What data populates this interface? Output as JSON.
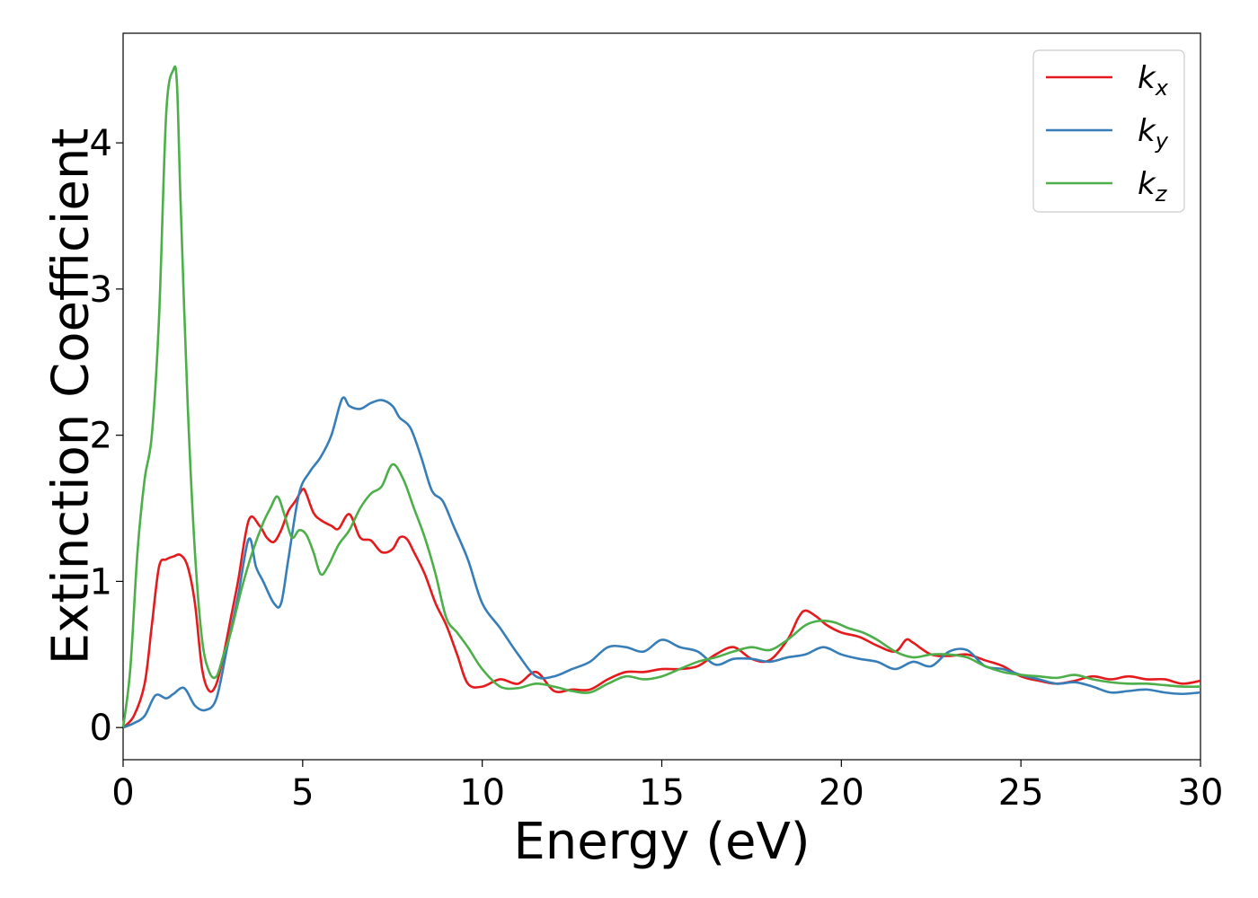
{
  "chart_data": {
    "type": "line",
    "title": "",
    "xlabel": "Energy (eV)",
    "ylabel": "Extinction Coefficient",
    "xlim": [
      0,
      30
    ],
    "ylim": [
      -0.22,
      4.75
    ],
    "xticks": [
      0,
      5,
      10,
      15,
      20,
      25,
      30
    ],
    "yticks": [
      0,
      1,
      2,
      3,
      4
    ],
    "grid": false,
    "legend_position": "top-right",
    "series": [
      {
        "name": "k",
        "subscript": "x",
        "color": "#e41a1c",
        "x": [
          0,
          0.3,
          0.6,
          0.8,
          1.0,
          1.2,
          1.4,
          1.6,
          1.8,
          2.0,
          2.2,
          2.4,
          2.6,
          2.8,
          3.0,
          3.2,
          3.5,
          3.8,
          4.0,
          4.2,
          4.4,
          4.6,
          4.8,
          5.0,
          5.1,
          5.3,
          5.5,
          5.8,
          6.0,
          6.3,
          6.6,
          6.9,
          7.2,
          7.5,
          7.7,
          7.9,
          8.1,
          8.4,
          8.7,
          9.0,
          9.3,
          9.6,
          10.0,
          10.5,
          11.0,
          11.5,
          12.0,
          12.5,
          13.0,
          13.5,
          14.0,
          14.5,
          15.0,
          15.5,
          16.0,
          16.5,
          17.0,
          17.5,
          18.0,
          18.5,
          18.8,
          19.0,
          19.3,
          19.6,
          20.0,
          20.5,
          21.0,
          21.5,
          21.8,
          22.0,
          22.5,
          23.0,
          23.5,
          24.0,
          24.5,
          25.0,
          25.5,
          26.0,
          26.5,
          27.0,
          27.5,
          28.0,
          28.5,
          29.0,
          29.5,
          30.0
        ],
        "y": [
          0.0,
          0.08,
          0.3,
          0.7,
          1.1,
          1.15,
          1.17,
          1.18,
          1.1,
          0.85,
          0.4,
          0.25,
          0.3,
          0.5,
          0.75,
          1.0,
          1.42,
          1.38,
          1.3,
          1.27,
          1.35,
          1.48,
          1.55,
          1.63,
          1.6,
          1.47,
          1.42,
          1.38,
          1.36,
          1.46,
          1.3,
          1.28,
          1.2,
          1.22,
          1.3,
          1.29,
          1.2,
          1.05,
          0.85,
          0.7,
          0.5,
          0.3,
          0.28,
          0.33,
          0.3,
          0.38,
          0.25,
          0.26,
          0.26,
          0.33,
          0.38,
          0.38,
          0.4,
          0.4,
          0.42,
          0.5,
          0.55,
          0.47,
          0.46,
          0.6,
          0.75,
          0.8,
          0.76,
          0.7,
          0.65,
          0.62,
          0.56,
          0.52,
          0.6,
          0.58,
          0.5,
          0.49,
          0.5,
          0.46,
          0.42,
          0.35,
          0.32,
          0.3,
          0.32,
          0.35,
          0.33,
          0.35,
          0.33,
          0.33,
          0.3,
          0.32
        ]
      },
      {
        "name": "k",
        "subscript": "y",
        "color": "#377eb8",
        "x": [
          0,
          0.3,
          0.6,
          0.9,
          1.2,
          1.4,
          1.7,
          2.0,
          2.3,
          2.6,
          2.9,
          3.2,
          3.5,
          3.7,
          3.9,
          4.2,
          4.4,
          4.6,
          4.9,
          5.2,
          5.5,
          5.8,
          6.1,
          6.3,
          6.6,
          6.9,
          7.2,
          7.5,
          7.7,
          8.0,
          8.3,
          8.6,
          8.9,
          9.2,
          9.6,
          10.0,
          10.5,
          11.0,
          11.5,
          12.0,
          12.5,
          13.0,
          13.5,
          14.0,
          14.5,
          15.0,
          15.5,
          16.0,
          16.5,
          17.0,
          17.5,
          18.0,
          18.5,
          19.0,
          19.5,
          20.0,
          20.5,
          21.0,
          21.5,
          22.0,
          22.5,
          23.0,
          23.5,
          24.0,
          24.5,
          25.0,
          25.5,
          26.0,
          26.5,
          27.0,
          27.5,
          28.0,
          28.5,
          29.0,
          29.5,
          30.0
        ],
        "y": [
          0.0,
          0.03,
          0.08,
          0.22,
          0.2,
          0.23,
          0.27,
          0.15,
          0.12,
          0.2,
          0.55,
          0.9,
          1.29,
          1.1,
          1.0,
          0.85,
          0.85,
          1.15,
          1.6,
          1.75,
          1.85,
          2.0,
          2.25,
          2.2,
          2.18,
          2.22,
          2.24,
          2.2,
          2.12,
          2.05,
          1.85,
          1.62,
          1.55,
          1.38,
          1.15,
          0.85,
          0.68,
          0.5,
          0.35,
          0.35,
          0.4,
          0.45,
          0.55,
          0.55,
          0.52,
          0.6,
          0.55,
          0.52,
          0.43,
          0.47,
          0.47,
          0.45,
          0.48,
          0.5,
          0.55,
          0.5,
          0.47,
          0.45,
          0.4,
          0.45,
          0.42,
          0.52,
          0.53,
          0.42,
          0.4,
          0.36,
          0.33,
          0.3,
          0.31,
          0.28,
          0.24,
          0.25,
          0.26,
          0.24,
          0.23,
          0.24
        ]
      },
      {
        "name": "k",
        "subscript": "z",
        "color": "#4daf4a",
        "x": [
          0,
          0.2,
          0.4,
          0.6,
          0.8,
          1.0,
          1.2,
          1.4,
          1.5,
          1.6,
          1.8,
          2.0,
          2.2,
          2.4,
          2.6,
          2.8,
          3.0,
          3.3,
          3.6,
          3.9,
          4.1,
          4.3,
          4.5,
          4.7,
          4.9,
          5.1,
          5.3,
          5.5,
          5.7,
          6.0,
          6.3,
          6.6,
          6.9,
          7.2,
          7.5,
          7.8,
          8.1,
          8.4,
          8.7,
          9.0,
          9.3,
          9.6,
          10.0,
          10.5,
          11.0,
          11.5,
          12.0,
          12.5,
          13.0,
          13.5,
          14.0,
          14.5,
          15.0,
          15.5,
          16.0,
          16.5,
          17.0,
          17.5,
          18.0,
          18.5,
          19.0,
          19.4,
          19.8,
          20.2,
          20.6,
          21.0,
          21.5,
          22.0,
          22.5,
          23.0,
          23.5,
          24.0,
          24.5,
          25.0,
          25.5,
          26.0,
          26.5,
          27.0,
          27.5,
          28.0,
          28.5,
          29.0,
          29.5,
          30.0
        ],
        "y": [
          0.0,
          0.4,
          1.2,
          1.7,
          2.0,
          2.8,
          4.2,
          4.5,
          4.4,
          3.6,
          2.2,
          1.2,
          0.6,
          0.38,
          0.35,
          0.5,
          0.65,
          0.95,
          1.2,
          1.4,
          1.5,
          1.58,
          1.45,
          1.3,
          1.35,
          1.32,
          1.2,
          1.05,
          1.1,
          1.25,
          1.35,
          1.5,
          1.6,
          1.65,
          1.8,
          1.7,
          1.5,
          1.3,
          1.05,
          0.75,
          0.65,
          0.55,
          0.4,
          0.28,
          0.27,
          0.3,
          0.28,
          0.25,
          0.24,
          0.3,
          0.35,
          0.33,
          0.35,
          0.4,
          0.45,
          0.48,
          0.52,
          0.55,
          0.53,
          0.6,
          0.7,
          0.73,
          0.72,
          0.68,
          0.65,
          0.6,
          0.52,
          0.48,
          0.5,
          0.5,
          0.48,
          0.42,
          0.38,
          0.36,
          0.35,
          0.34,
          0.36,
          0.33,
          0.31,
          0.3,
          0.3,
          0.29,
          0.28,
          0.28
        ]
      }
    ]
  }
}
